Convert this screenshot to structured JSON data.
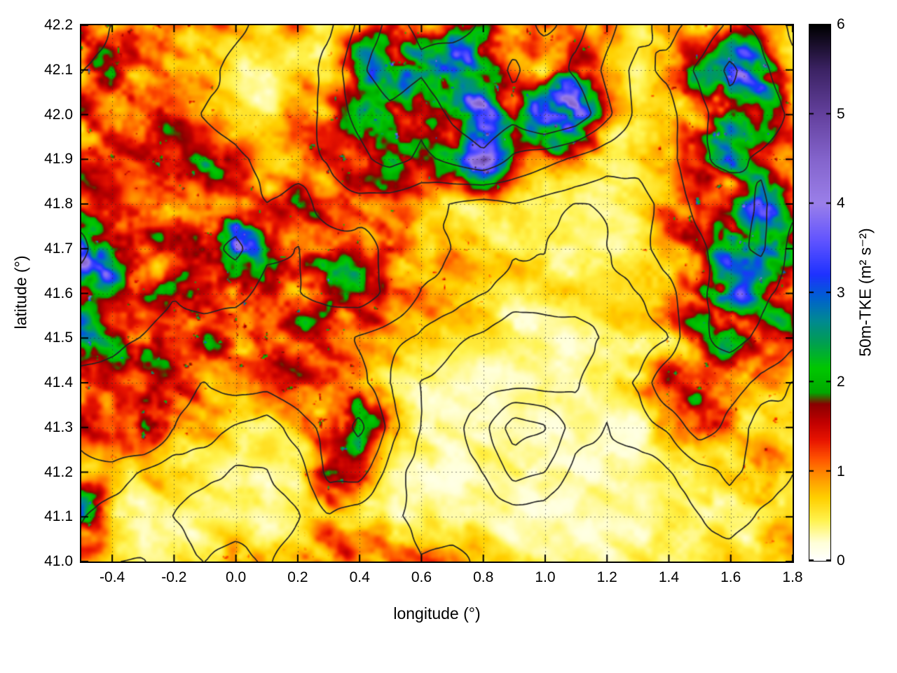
{
  "chart_data": {
    "type": "heatmap",
    "xlabel": "longitude (°)",
    "ylabel": "latitude (°)",
    "xlim": [
      -0.5,
      1.8
    ],
    "ylim": [
      41.0,
      42.2
    ],
    "xticks": [
      -0.4,
      -0.2,
      0.0,
      0.2,
      0.4,
      0.6,
      0.8,
      1.0,
      1.2,
      1.4,
      1.6,
      1.8
    ],
    "xtick_labels": [
      "-0.4",
      "-0.2",
      "0.0",
      "0.2",
      "0.4",
      "0.6",
      "0.8",
      "1.0",
      "1.2",
      "1.4",
      "1.6",
      "1.8"
    ],
    "yticks": [
      41.0,
      41.1,
      41.2,
      41.3,
      41.4,
      41.5,
      41.6,
      41.7,
      41.8,
      41.9,
      42.0,
      42.1,
      42.2
    ],
    "ytick_labels": [
      "41.0",
      "41.1",
      "41.2",
      "41.3",
      "41.4",
      "41.5",
      "41.6",
      "41.7",
      "41.8",
      "41.9",
      "42.0",
      "42.1",
      "42.2"
    ],
    "grid": true,
    "colorbar": {
      "label": "50m-TKE (m² s⁻²)",
      "range": [
        0,
        6
      ],
      "ticks": [
        0,
        1,
        2,
        3,
        4,
        5,
        6
      ],
      "tick_labels": [
        "0",
        "1",
        "2",
        "3",
        "4",
        "5",
        "6"
      ],
      "colormap": [
        {
          "v": 0.0,
          "c": "#ffffff"
        },
        {
          "v": 0.2,
          "c": "#ffffd8"
        },
        {
          "v": 0.45,
          "c": "#fff34e"
        },
        {
          "v": 0.7,
          "c": "#ffd000"
        },
        {
          "v": 0.95,
          "c": "#ff9000"
        },
        {
          "v": 1.15,
          "c": "#ff5000"
        },
        {
          "v": 1.35,
          "c": "#e81400"
        },
        {
          "v": 1.55,
          "c": "#c00000"
        },
        {
          "v": 1.75,
          "c": "#8a0000"
        },
        {
          "v": 1.88,
          "c": "#00a800"
        },
        {
          "v": 2.15,
          "c": "#00c800"
        },
        {
          "v": 2.45,
          "c": "#009e55"
        },
        {
          "v": 2.7,
          "c": "#008896"
        },
        {
          "v": 2.95,
          "c": "#0060d2"
        },
        {
          "v": 3.2,
          "c": "#1e32ff"
        },
        {
          "v": 3.6,
          "c": "#6456ff"
        },
        {
          "v": 4.0,
          "c": "#9b80ea"
        },
        {
          "v": 4.5,
          "c": "#8464cc"
        },
        {
          "v": 5.0,
          "c": "#64419e"
        },
        {
          "v": 5.5,
          "c": "#3c2364"
        },
        {
          "v": 6.0,
          "c": "#000000"
        }
      ]
    },
    "field": {
      "label": "50m-TKE",
      "nx": 24,
      "ny": 13,
      "lon_min": -0.5,
      "lon_step": 0.1,
      "lat_min": 41.0,
      "lat_step": 0.1,
      "row_order": "north_to_south",
      "values": [
        [
          1.3,
          1.2,
          1.0,
          1.2,
          1.0,
          0.8,
          0.6,
          0.8,
          0.5,
          0.8,
          1.5,
          1.8,
          1.2,
          1.5,
          1.2,
          1.0,
          1.2,
          0.8,
          0.6,
          0.8,
          1.0,
          1.2,
          1.5,
          0.8
        ],
        [
          1.4,
          1.3,
          1.2,
          1.0,
          0.7,
          0.5,
          0.4,
          0.6,
          0.9,
          2.5,
          2.0,
          2.8,
          4.0,
          2.0,
          1.0,
          0.5,
          1.2,
          0.6,
          0.4,
          1.0,
          1.5,
          3.0,
          2.5,
          0.8
        ],
        [
          1.3,
          1.2,
          1.3,
          1.1,
          0.8,
          0.6,
          0.5,
          0.7,
          1.0,
          1.8,
          2.2,
          1.5,
          1.8,
          2.5,
          1.5,
          4.5,
          4.8,
          1.5,
          0.6,
          0.8,
          1.2,
          2.5,
          2.0,
          1.0
        ],
        [
          1.4,
          1.3,
          1.2,
          1.0,
          1.6,
          1.2,
          0.8,
          0.9,
          1.2,
          1.5,
          2.0,
          1.3,
          2.0,
          3.5,
          1.2,
          0.8,
          0.6,
          0.5,
          0.5,
          0.7,
          1.5,
          2.2,
          1.8,
          1.2
        ],
        [
          1.4,
          1.5,
          1.3,
          1.4,
          1.2,
          1.3,
          1.0,
          1.4,
          0.9,
          1.0,
          0.8,
          0.7,
          0.6,
          0.5,
          0.6,
          0.5,
          0.4,
          0.4,
          0.5,
          0.8,
          1.5,
          1.3,
          3.0,
          1.5
        ],
        [
          3.5,
          2.0,
          1.4,
          1.5,
          1.8,
          4.0,
          1.5,
          1.3,
          1.6,
          1.6,
          1.2,
          0.8,
          0.7,
          0.6,
          0.5,
          0.5,
          0.4,
          0.5,
          0.6,
          0.8,
          1.2,
          2.5,
          3.5,
          1.5
        ],
        [
          2.2,
          1.8,
          1.5,
          1.4,
          1.5,
          1.6,
          1.3,
          1.4,
          1.6,
          1.7,
          1.3,
          0.9,
          0.8,
          0.7,
          0.6,
          0.5,
          0.5,
          0.4,
          0.5,
          0.7,
          1.5,
          2.8,
          2.0,
          1.3
        ],
        [
          2.0,
          1.6,
          1.5,
          1.4,
          1.3,
          1.2,
          1.1,
          1.3,
          1.2,
          0.9,
          0.8,
          0.7,
          0.6,
          0.5,
          0.4,
          0.4,
          0.3,
          0.4,
          0.5,
          0.6,
          1.4,
          2.0,
          1.5,
          1.2
        ],
        [
          1.5,
          1.4,
          1.2,
          1.0,
          0.9,
          1.0,
          1.1,
          1.2,
          1.3,
          1.0,
          0.6,
          0.4,
          0.3,
          0.3,
          0.3,
          0.3,
          0.3,
          0.4,
          0.6,
          1.2,
          1.3,
          1.0,
          0.8,
          0.7
        ],
        [
          1.2,
          1.5,
          1.8,
          0.9,
          0.7,
          0.6,
          0.5,
          0.7,
          1.0,
          2.5,
          0.8,
          0.4,
          0.3,
          0.3,
          0.3,
          0.3,
          0.3,
          0.3,
          0.4,
          0.6,
          1.2,
          0.8,
          0.6,
          0.8
        ],
        [
          0.8,
          0.7,
          0.6,
          0.5,
          0.4,
          0.4,
          0.4,
          0.5,
          1.4,
          1.2,
          0.4,
          0.3,
          0.2,
          0.3,
          0.3,
          0.3,
          0.2,
          0.3,
          0.3,
          0.4,
          0.5,
          0.6,
          0.9,
          0.7
        ],
        [
          3.0,
          0.6,
          0.4,
          0.4,
          0.3,
          0.3,
          0.3,
          0.4,
          0.8,
          0.5,
          0.4,
          0.3,
          0.3,
          0.3,
          0.2,
          0.3,
          0.3,
          0.3,
          0.3,
          0.3,
          0.4,
          0.5,
          0.7,
          0.6
        ],
        [
          0.8,
          0.5,
          0.4,
          0.6,
          0.5,
          1.2,
          0.6,
          0.8,
          1.5,
          0.9,
          1.4,
          0.8,
          1.2,
          0.6,
          0.4,
          0.4,
          0.3,
          0.3,
          0.3,
          0.4,
          0.4,
          0.5,
          0.6,
          0.7
        ]
      ]
    },
    "contours": {
      "label": "orography contour lines",
      "color": "#222222",
      "levels": [
        0.25,
        0.35,
        0.45,
        0.65,
        0.85,
        1.05
      ],
      "row_order": "north_to_south",
      "values": [
        [
          0.9,
          0.85,
          0.8,
          0.8,
          0.75,
          0.7,
          0.6,
          0.55,
          0.6,
          0.9,
          1.1,
          1.0,
          0.9,
          1.1,
          1.2,
          1.0,
          1.1,
          0.9,
          0.7,
          0.6,
          0.7,
          0.9,
          0.8,
          0.6
        ],
        [
          0.85,
          0.8,
          0.8,
          0.75,
          0.7,
          0.6,
          0.55,
          0.5,
          0.7,
          1.0,
          1.2,
          1.1,
          1.3,
          1.2,
          1.0,
          1.2,
          1.0,
          0.8,
          0.6,
          0.7,
          0.9,
          1.1,
          0.9,
          0.7
        ],
        [
          0.8,
          0.8,
          0.75,
          0.7,
          0.65,
          0.6,
          0.5,
          0.55,
          0.7,
          0.9,
          1.0,
          0.9,
          1.1,
          1.2,
          1.1,
          1.3,
          1.2,
          0.9,
          0.6,
          0.6,
          0.8,
          1.0,
          1.0,
          0.8
        ],
        [
          0.8,
          0.75,
          0.7,
          0.7,
          0.75,
          0.7,
          0.6,
          0.6,
          0.65,
          0.8,
          0.9,
          0.8,
          0.9,
          1.0,
          0.8,
          0.7,
          0.6,
          0.5,
          0.5,
          0.6,
          0.8,
          0.9,
          0.8,
          0.7
        ],
        [
          0.75,
          0.8,
          0.7,
          0.75,
          0.7,
          0.7,
          0.65,
          0.7,
          0.6,
          0.6,
          0.55,
          0.5,
          0.45,
          0.4,
          0.45,
          0.4,
          0.35,
          0.35,
          0.4,
          0.5,
          0.7,
          0.7,
          0.9,
          0.7
        ],
        [
          0.9,
          0.7,
          0.65,
          0.7,
          0.75,
          0.9,
          0.7,
          0.65,
          0.7,
          0.7,
          0.6,
          0.5,
          0.45,
          0.4,
          0.35,
          0.35,
          0.3,
          0.35,
          0.4,
          0.5,
          0.6,
          0.8,
          0.9,
          0.6
        ],
        [
          0.8,
          0.75,
          0.7,
          0.65,
          0.7,
          0.7,
          0.6,
          0.65,
          0.7,
          0.75,
          0.6,
          0.45,
          0.4,
          0.35,
          0.3,
          0.3,
          0.3,
          0.3,
          0.35,
          0.4,
          0.6,
          0.8,
          0.7,
          0.6
        ],
        [
          0.75,
          0.7,
          0.65,
          0.6,
          0.6,
          0.55,
          0.5,
          0.55,
          0.55,
          0.45,
          0.4,
          0.35,
          0.3,
          0.25,
          0.2,
          0.2,
          0.2,
          0.25,
          0.3,
          0.35,
          0.6,
          0.7,
          0.6,
          0.5
        ],
        [
          0.6,
          0.6,
          0.55,
          0.5,
          0.45,
          0.5,
          0.5,
          0.55,
          0.6,
          0.5,
          0.35,
          0.25,
          0.2,
          0.2,
          0.2,
          0.2,
          0.25,
          0.3,
          0.35,
          0.55,
          0.6,
          0.5,
          0.4,
          0.35
        ],
        [
          0.5,
          0.6,
          0.65,
          0.45,
          0.4,
          0.35,
          0.3,
          0.4,
          0.5,
          0.7,
          0.4,
          0.25,
          0.2,
          0.3,
          0.5,
          0.45,
          0.3,
          0.25,
          0.3,
          0.35,
          0.5,
          0.4,
          0.3,
          0.3
        ],
        [
          0.4,
          0.4,
          0.35,
          0.3,
          0.3,
          0.25,
          0.25,
          0.3,
          0.5,
          0.5,
          0.3,
          0.2,
          0.15,
          0.25,
          0.4,
          0.35,
          0.2,
          0.2,
          0.2,
          0.25,
          0.3,
          0.35,
          0.3,
          0.25
        ],
        [
          0.35,
          0.3,
          0.3,
          0.25,
          0.2,
          0.2,
          0.2,
          0.25,
          0.35,
          0.3,
          0.25,
          0.2,
          0.15,
          0.15,
          0.2,
          0.2,
          0.15,
          0.15,
          0.15,
          0.2,
          0.25,
          0.3,
          0.25,
          0.2
        ],
        [
          0.3,
          0.25,
          0.25,
          0.3,
          0.25,
          0.3,
          0.25,
          0.3,
          0.35,
          0.3,
          0.3,
          0.25,
          0.3,
          0.2,
          0.15,
          0.15,
          0.1,
          0.1,
          0.1,
          0.15,
          0.2,
          0.2,
          0.2,
          0.15
        ]
      ]
    }
  }
}
